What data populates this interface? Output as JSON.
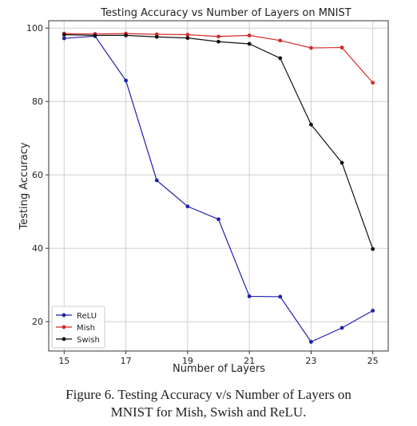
{
  "chart_data": {
    "type": "line",
    "title": "Testing Accuracy vs Number of Layers on MNIST",
    "xlabel": "Number of Layers",
    "ylabel": "Testing Accuracy",
    "xlim": [
      14.5,
      25.5
    ],
    "ylim": [
      12,
      102
    ],
    "xticks": [
      15,
      17,
      19,
      21,
      23,
      25
    ],
    "yticks": [
      20,
      40,
      60,
      80,
      100
    ],
    "grid": true,
    "legend_position": "bottom-left",
    "x": [
      15,
      16,
      17,
      18,
      19,
      20,
      21,
      22,
      23,
      24,
      25
    ],
    "series": [
      {
        "name": "ReLU",
        "color": "#1f1fb0",
        "values": [
          97.2,
          97.8,
          85.7,
          58.5,
          51.4,
          47.9,
          26.9,
          26.8,
          14.5,
          18.3,
          23.0
        ]
      },
      {
        "name": "Mish",
        "color": "#d62728",
        "values": [
          98.5,
          98.4,
          98.5,
          98.3,
          98.2,
          97.7,
          98.0,
          96.6,
          94.6,
          94.7,
          85.1
        ]
      },
      {
        "name": "Swish",
        "color": "#111111",
        "values": [
          98.2,
          98.0,
          98.0,
          97.6,
          97.3,
          96.3,
          95.7,
          91.8,
          73.7,
          63.3,
          39.8
        ]
      }
    ]
  },
  "caption": {
    "line1": "Figure 6. Testing Accuracy v/s Number of Layers on",
    "line2": "MNIST for Mish, Swish and ReLU."
  }
}
